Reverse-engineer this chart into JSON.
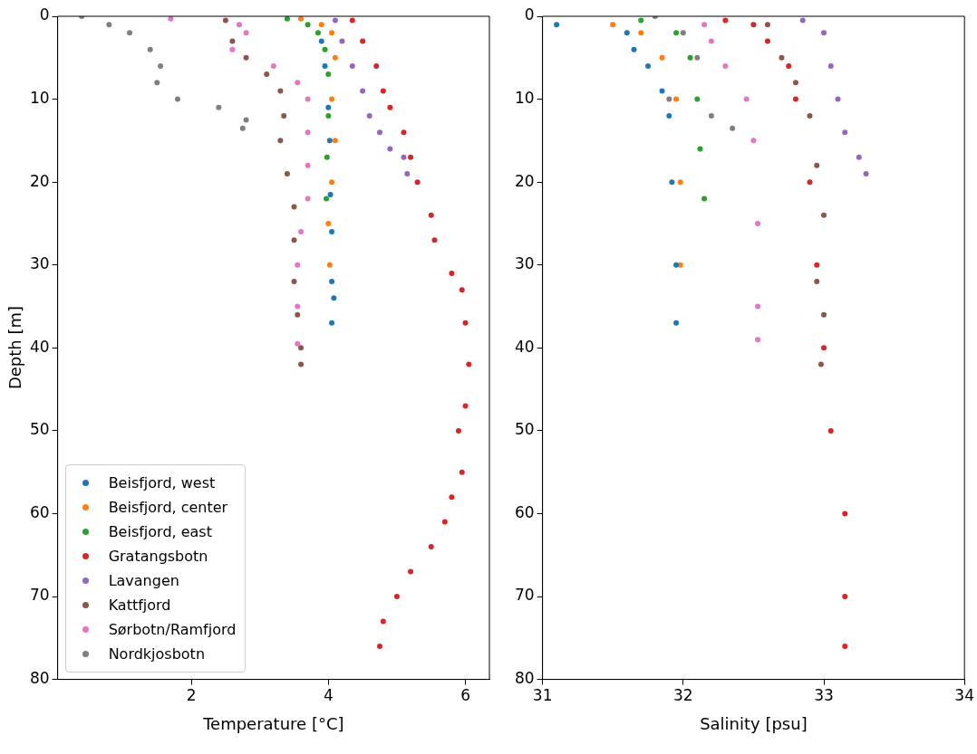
{
  "chart_data": [
    {
      "type": "scatter",
      "xlabel": "Temperature [°C]",
      "ylabel": "Depth [m]",
      "xlim": [
        0.05,
        6.35
      ],
      "xticks": [
        2,
        4,
        6
      ],
      "ylim": [
        80,
        0
      ],
      "yticks": [
        0,
        10,
        20,
        30,
        40,
        50,
        60,
        70,
        80
      ],
      "grid": false,
      "legend": "bottom left",
      "marker": "circle",
      "series": [
        {
          "name": "Beisfjord, west",
          "color": "#1f77b4",
          "x": [
            3.9,
            3.95,
            4.0,
            4.02,
            4.03,
            4.05,
            4.05,
            4.08,
            4.05
          ],
          "values": [
            3,
            6,
            11,
            15,
            21.5,
            26,
            32,
            34,
            37
          ]
        },
        {
          "name": "Beisfjord, center",
          "color": "#ff7f0e",
          "x": [
            3.6,
            3.9,
            4.05,
            4.1,
            4.05,
            4.1,
            4.05,
            4.0,
            4.02
          ],
          "values": [
            0.3,
            1,
            2,
            5,
            10,
            15,
            20,
            25,
            30
          ]
        },
        {
          "name": "Beisfjord, east",
          "color": "#2ca02c",
          "x": [
            3.4,
            3.7,
            3.85,
            3.95,
            4.0,
            4.0,
            3.98,
            3.97
          ],
          "values": [
            0.3,
            1,
            2,
            4,
            7,
            12,
            17,
            22
          ]
        },
        {
          "name": "Gratangsbotn",
          "color": "#d62728",
          "x": [
            4.35,
            4.5,
            4.7,
            4.8,
            4.9,
            5.1,
            5.2,
            5.3,
            5.5,
            5.55,
            5.8,
            5.95,
            6.0,
            6.05,
            6.0,
            5.9,
            5.95,
            5.8,
            5.7,
            5.5,
            5.2,
            5.0,
            4.8,
            4.75
          ],
          "values": [
            0.5,
            3,
            6,
            9,
            11,
            14,
            17,
            20,
            24,
            27,
            31,
            33,
            37,
            42,
            47,
            50,
            55,
            58,
            61,
            64,
            67,
            70,
            73,
            76
          ]
        },
        {
          "name": "Lavangen",
          "color": "#9467bd",
          "x": [
            4.1,
            4.2,
            4.35,
            4.5,
            4.6,
            4.75,
            4.9,
            5.1,
            5.15
          ],
          "values": [
            0.5,
            3,
            6,
            9,
            12,
            14,
            16,
            17,
            19
          ]
        },
        {
          "name": "Kattfjord",
          "color": "#8c564b",
          "x": [
            2.5,
            2.6,
            2.8,
            3.1,
            3.3,
            3.35,
            3.3,
            3.4,
            3.5,
            3.5,
            3.5,
            3.55,
            3.6,
            3.6
          ],
          "values": [
            0.5,
            3,
            5,
            7,
            9,
            12,
            15,
            19,
            23,
            27,
            32,
            36,
            40,
            42
          ]
        },
        {
          "name": "Sørbotn/Ramfjord",
          "color": "#e377c2",
          "x": [
            1.7,
            2.7,
            2.8,
            2.6,
            3.2,
            3.55,
            3.7,
            3.7,
            3.7,
            3.7,
            3.6,
            3.55,
            3.55,
            3.55
          ],
          "values": [
            0.3,
            1,
            2,
            4,
            6,
            8,
            10,
            14,
            18,
            22,
            26,
            30,
            35,
            39.5
          ]
        },
        {
          "name": "Nordkjosbotn",
          "color": "#7f7f7f",
          "x": [
            0.4,
            0.8,
            1.1,
            1.4,
            1.55,
            1.5,
            1.8,
            2.4,
            2.8,
            2.75
          ],
          "values": [
            0,
            1,
            2,
            4,
            6,
            8,
            10,
            11,
            12.5,
            13.5
          ]
        }
      ]
    },
    {
      "type": "scatter",
      "xlabel": "Salinity [psu]",
      "xlim": [
        31,
        34
      ],
      "xticks": [
        31,
        32,
        33,
        34
      ],
      "ylim": [
        80,
        0
      ],
      "yticks": [
        0,
        10,
        20,
        30,
        40,
        50,
        60,
        70,
        80
      ],
      "grid": false,
      "marker": "circle",
      "series": [
        {
          "color": "#1f77b4",
          "x": [
            31.1,
            31.6,
            31.65,
            31.75,
            31.85,
            31.9,
            31.92,
            31.95,
            31.95
          ],
          "values": [
            1,
            2,
            4,
            6,
            9,
            12,
            20,
            30,
            37
          ]
        },
        {
          "color": "#ff7f0e",
          "x": [
            31.5,
            31.7,
            31.85,
            31.95,
            31.98,
            31.98
          ],
          "values": [
            1,
            2,
            5,
            10,
            20,
            30
          ]
        },
        {
          "color": "#2ca02c",
          "x": [
            31.7,
            31.95,
            32.05,
            32.1,
            32.12,
            32.15
          ],
          "values": [
            0.5,
            2,
            5,
            10,
            16,
            22
          ]
        },
        {
          "color": "#d62728",
          "x": [
            32.3,
            32.5,
            32.6,
            32.75,
            32.8,
            32.9,
            32.95,
            33.0,
            33.05,
            33.15,
            33.15,
            33.15
          ],
          "values": [
            0.5,
            1,
            3,
            6,
            10,
            20,
            30,
            40,
            50,
            60,
            70,
            76
          ]
        },
        {
          "color": "#9467bd",
          "x": [
            32.85,
            33.0,
            33.05,
            33.1,
            33.15,
            33.25,
            33.3
          ],
          "values": [
            0.5,
            2,
            6,
            10,
            14,
            17,
            19
          ]
        },
        {
          "color": "#8c564b",
          "x": [
            32.6,
            32.7,
            32.8,
            32.9,
            32.95,
            33.0,
            32.95,
            33.0,
            32.98
          ],
          "values": [
            1,
            5,
            8,
            12,
            18,
            24,
            32,
            36,
            42
          ]
        },
        {
          "color": "#e377c2",
          "x": [
            32.15,
            32.2,
            32.3,
            32.45,
            32.5,
            32.53,
            32.53,
            32.53
          ],
          "values": [
            1,
            3,
            6,
            10,
            15,
            25,
            35,
            39
          ]
        },
        {
          "color": "#7f7f7f",
          "x": [
            31.8,
            32.0,
            32.1,
            31.9,
            32.2,
            32.35
          ],
          "values": [
            0,
            2,
            5,
            10,
            12,
            13.5
          ]
        }
      ]
    }
  ]
}
